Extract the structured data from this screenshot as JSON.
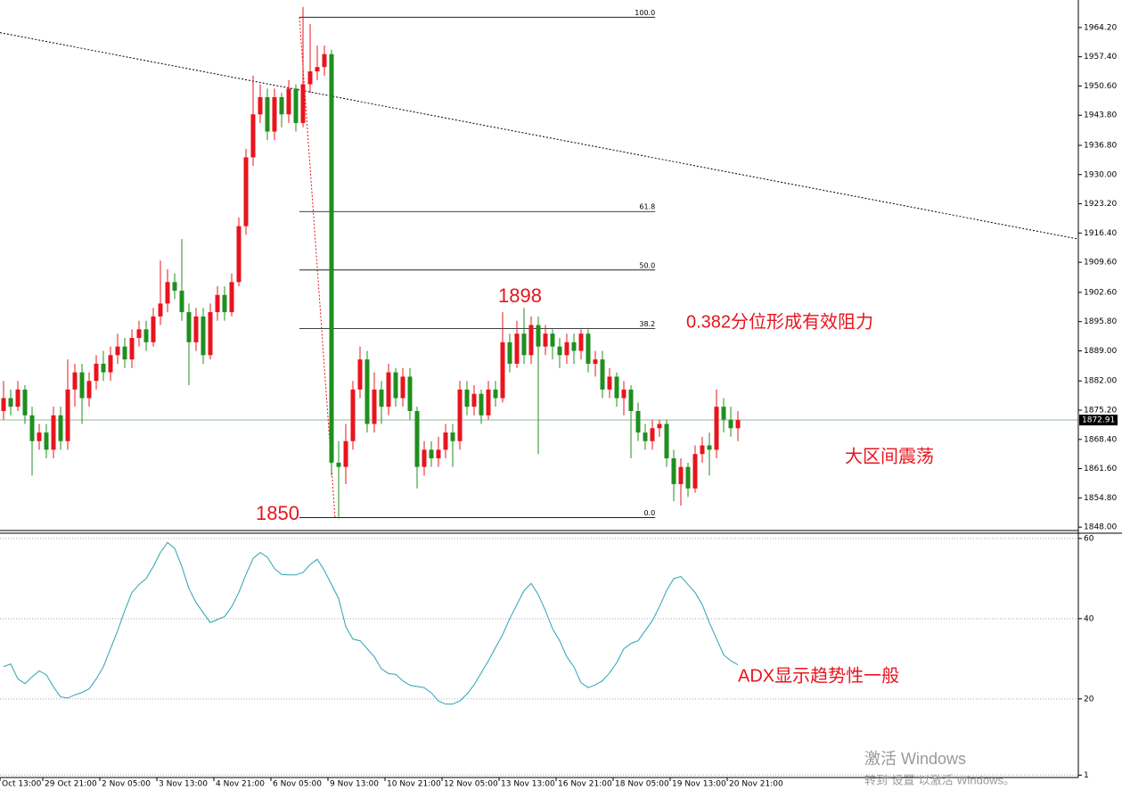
{
  "chart_data": [
    {
      "type": "candlestick",
      "up_color": "#e8141e",
      "down_color": "#1f8f1f",
      "xlim": [
        -0.5,
        150.75
      ],
      "ylim": [
        1847,
        1970.6
      ],
      "yticks": [
        {
          "value": 1848,
          "label": "1848.00"
        },
        {
          "value": 1854.8,
          "label": "1854.80"
        },
        {
          "value": 1861.6,
          "label": "1861.60"
        },
        {
          "value": 1868.4,
          "label": "1868.40"
        },
        {
          "value": 1875.2,
          "label": "1875.20"
        },
        {
          "value": 1882,
          "label": "1882.00"
        },
        {
          "value": 1889,
          "label": "1889.00"
        },
        {
          "value": 1895.8,
          "label": "1895.80"
        },
        {
          "value": 1902.6,
          "label": "1902.60"
        },
        {
          "value": 1909.6,
          "label": "1909.60"
        },
        {
          "value": 1916.4,
          "label": "1916.40"
        },
        {
          "value": 1923.2,
          "label": "1923.20"
        },
        {
          "value": 1930,
          "label": "1930.00"
        },
        {
          "value": 1936.8,
          "label": "1936.80"
        },
        {
          "value": 1943.8,
          "label": "1943.80"
        },
        {
          "value": 1950.6,
          "label": "1950.60"
        },
        {
          "value": 1957.4,
          "label": "1957.40"
        },
        {
          "value": 1964.2,
          "label": "1964.20"
        }
      ],
      "xticks": [
        {
          "value": -0.5,
          "label": "Oct 13:00"
        },
        {
          "value": 5.5,
          "label": "29 Oct 21:00"
        },
        {
          "value": 13.5,
          "label": "2 Nov 05:00"
        },
        {
          "value": 21.5,
          "label": "3 Nov 13:00"
        },
        {
          "value": 29.5,
          "label": "4 Nov 21:00"
        },
        {
          "value": 37.5,
          "label": "6 Nov 05:00"
        },
        {
          "value": 45.5,
          "label": "9 Nov 13:00"
        },
        {
          "value": 53.5,
          "label": "10 Nov 21:00"
        },
        {
          "value": 61.5,
          "label": "12 Nov 05:00"
        },
        {
          "value": 69.5,
          "label": "13 Nov 13:00"
        },
        {
          "value": 77.5,
          "label": "16 Nov 21:00"
        },
        {
          "value": 85.5,
          "label": "18 Nov 05:00"
        },
        {
          "value": 93.5,
          "label": "19 Nov 13:00"
        },
        {
          "value": 101.5,
          "label": "20 Nov 21:00"
        }
      ],
      "ohlc": [
        [
          1875,
          1882,
          1873,
          1878
        ],
        [
          1878,
          1880,
          1874,
          1876
        ],
        [
          1876,
          1882,
          1875,
          1880
        ],
        [
          1880,
          1881,
          1872,
          1874
        ],
        [
          1874,
          1876,
          1860,
          1868
        ],
        [
          1868,
          1872,
          1866,
          1870
        ],
        [
          1870,
          1872,
          1864,
          1866
        ],
        [
          1866,
          1876,
          1864,
          1874
        ],
        [
          1874,
          1876,
          1866,
          1868
        ],
        [
          1868,
          1887,
          1866,
          1880
        ],
        [
          1880,
          1886,
          1876,
          1884
        ],
        [
          1884,
          1886,
          1872,
          1878
        ],
        [
          1878,
          1884,
          1876,
          1882
        ],
        [
          1882,
          1888,
          1880,
          1886
        ],
        [
          1886,
          1889,
          1882,
          1884
        ],
        [
          1884,
          1890,
          1882,
          1888
        ],
        [
          1888,
          1893,
          1886,
          1890
        ],
        [
          1890,
          1892,
          1885,
          1887
        ],
        [
          1887,
          1894,
          1885,
          1892
        ],
        [
          1892,
          1896,
          1890,
          1894
        ],
        [
          1894,
          1896,
          1889,
          1891
        ],
        [
          1891,
          1899,
          1890,
          1897
        ],
        [
          1897,
          1910,
          1895,
          1900
        ],
        [
          1900,
          1908,
          1898,
          1905
        ],
        [
          1905,
          1907,
          1901,
          1903
        ],
        [
          1903,
          1915,
          1896,
          1898
        ],
        [
          1898,
          1900,
          1881,
          1891
        ],
        [
          1891,
          1899,
          1889,
          1897
        ],
        [
          1897,
          1899,
          1886,
          1888
        ],
        [
          1888,
          1900,
          1887,
          1898
        ],
        [
          1898,
          1904,
          1896,
          1902
        ],
        [
          1902,
          1904,
          1896,
          1898
        ],
        [
          1898,
          1907,
          1897,
          1905
        ],
        [
          1905,
          1920,
          1904,
          1918
        ],
        [
          1918,
          1936,
          1916,
          1934
        ],
        [
          1934,
          1953,
          1932,
          1944
        ],
        [
          1944,
          1951,
          1942,
          1948
        ],
        [
          1948,
          1950,
          1938,
          1940
        ],
        [
          1940,
          1950,
          1938,
          1948
        ],
        [
          1948,
          1949,
          1941,
          1944
        ],
        [
          1944,
          1952,
          1942,
          1950
        ],
        [
          1950,
          1951,
          1940,
          1942
        ],
        [
          1942,
          1969,
          1941,
          1951
        ],
        [
          1951,
          1965,
          1949,
          1954
        ],
        [
          1954,
          1960,
          1952,
          1955
        ],
        [
          1955,
          1960,
          1953,
          1958
        ],
        [
          1958,
          1959,
          1860,
          1863
        ],
        [
          1863,
          1868,
          1850,
          1862
        ],
        [
          1862,
          1872,
          1858,
          1868
        ],
        [
          1868,
          1882,
          1866,
          1880
        ],
        [
          1880,
          1890,
          1878,
          1887
        ],
        [
          1887,
          1889,
          1870,
          1872
        ],
        [
          1872,
          1884,
          1870,
          1880
        ],
        [
          1880,
          1882,
          1872,
          1876
        ],
        [
          1876,
          1886,
          1874,
          1884
        ],
        [
          1884,
          1885,
          1876,
          1878
        ],
        [
          1878,
          1885,
          1876,
          1883
        ],
        [
          1883,
          1885,
          1873,
          1875
        ],
        [
          1875,
          1876,
          1857,
          1862
        ],
        [
          1862,
          1868,
          1860,
          1866
        ],
        [
          1866,
          1868,
          1862,
          1864
        ],
        [
          1864,
          1869,
          1862,
          1866
        ],
        [
          1866,
          1872,
          1864,
          1870
        ],
        [
          1870,
          1872,
          1862,
          1868
        ],
        [
          1868,
          1882,
          1866,
          1880
        ],
        [
          1880,
          1882,
          1874,
          1876
        ],
        [
          1876,
          1881,
          1874,
          1879
        ],
        [
          1879,
          1880,
          1872,
          1874
        ],
        [
          1874,
          1882,
          1873,
          1880
        ],
        [
          1880,
          1882,
          1876,
          1878
        ],
        [
          1878,
          1898,
          1877,
          1891
        ],
        [
          1891,
          1893,
          1884,
          1886
        ],
        [
          1886,
          1896,
          1885,
          1893
        ],
        [
          1893,
          1899,
          1886,
          1888
        ],
        [
          1888,
          1897,
          1886,
          1895
        ],
        [
          1895,
          1897,
          1865,
          1890
        ],
        [
          1890,
          1895,
          1888,
          1893
        ],
        [
          1893,
          1894,
          1887,
          1890
        ],
        [
          1890,
          1892,
          1885,
          1888
        ],
        [
          1888,
          1893,
          1886,
          1891
        ],
        [
          1891,
          1893,
          1886,
          1889
        ],
        [
          1889,
          1894,
          1887,
          1893
        ],
        [
          1893,
          1894,
          1884,
          1886
        ],
        [
          1886,
          1889,
          1883,
          1887
        ],
        [
          1887,
          1889,
          1878,
          1880
        ],
        [
          1880,
          1885,
          1878,
          1883
        ],
        [
          1883,
          1884,
          1876,
          1878
        ],
        [
          1878,
          1882,
          1874,
          1880
        ],
        [
          1880,
          1881,
          1864,
          1875
        ],
        [
          1875,
          1877,
          1868,
          1870
        ],
        [
          1870,
          1872,
          1866,
          1868
        ],
        [
          1868,
          1873,
          1866,
          1871
        ],
        [
          1871,
          1873,
          1869,
          1872
        ],
        [
          1872,
          1873,
          1862,
          1864
        ],
        [
          1864,
          1866,
          1854,
          1858
        ],
        [
          1858,
          1864,
          1853,
          1862
        ],
        [
          1862,
          1863,
          1855,
          1857
        ],
        [
          1857,
          1867,
          1856,
          1865
        ],
        [
          1865,
          1869,
          1863,
          1867
        ],
        [
          1867,
          1870,
          1860,
          1866
        ],
        [
          1866,
          1880,
          1864,
          1876
        ],
        [
          1876,
          1878,
          1870,
          1873
        ],
        [
          1873,
          1876,
          1869,
          1871
        ],
        [
          1871,
          1875,
          1868,
          1872.91
        ]
      ],
      "price_line_color": "#8fb89a",
      "trendline": {
        "x": [
          -0.5,
          150.75
        ],
        "y": [
          1963,
          1915
        ]
      },
      "fibonacci": {
        "x": [
          41.5,
          91.4
        ],
        "anchors_x": [
          41.5,
          46.5
        ],
        "levels": [
          {
            "label": "100.0",
            "price": 1966.6
          },
          {
            "label": "61.8",
            "price": 1921.4
          },
          {
            "label": "50.0",
            "price": 1907.8
          },
          {
            "label": "38.2",
            "price": 1894.2
          },
          {
            "label": "0.0",
            "price": 1850.2
          }
        ]
      },
      "annotations": [
        "1898",
        "1850",
        "0.382分位形成有效阻力",
        "大区间震荡",
        "ADX显示趋势性一般"
      ]
    },
    {
      "type": "line",
      "color": "#2aa3b3",
      "xlim": [
        -0.5,
        150.75
      ],
      "ylim": [
        0.4,
        61.3
      ],
      "yticks": [
        60,
        40,
        20,
        1
      ],
      "grid": true,
      "values": [
        28,
        28.7,
        25,
        23.8,
        25.5,
        27,
        26,
        23,
        20.5,
        20.2,
        21,
        21.6,
        22.5,
        25,
        28,
        32.5,
        37,
        42,
        46.5,
        48.5,
        50,
        53,
        56.5,
        59,
        57.5,
        53,
        47.5,
        44,
        41.5,
        39,
        39.8,
        40.5,
        43,
        46.5,
        51,
        55,
        56.5,
        55.3,
        52.5,
        51,
        50.9,
        50.9,
        51.5,
        53.5,
        54.8,
        52,
        48.5,
        45,
        38,
        34.9,
        34.5,
        32.5,
        30.5,
        27.5,
        26.3,
        26.1,
        24.5,
        23.4,
        23.1,
        22.8,
        21.5,
        19.5,
        18.7,
        18.7,
        19.5,
        21.2,
        23.5,
        26.5,
        29.5,
        32.8,
        36,
        40,
        43.5,
        47,
        48.8,
        46,
        42,
        37.5,
        34.5,
        30.5,
        28,
        24,
        22.8,
        23.5,
        24.5,
        26.5,
        29,
        32.5,
        33.8,
        34.5,
        37,
        39.5,
        43,
        47,
        50,
        50.5,
        48.5,
        46.5,
        43.5,
        39,
        35,
        31,
        29.5,
        28.5
      ]
    }
  ],
  "watermark": [
    "激活 Windows",
    "转到“设置”以激活 Windows。"
  ]
}
